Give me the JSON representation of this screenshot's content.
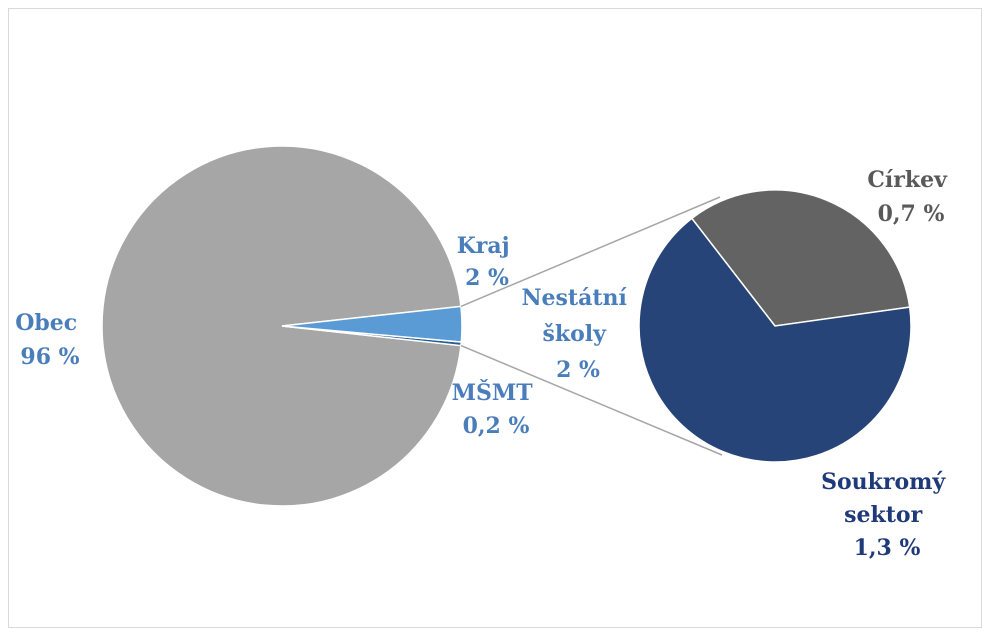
{
  "chart_data": {
    "type": "pie",
    "variant": "pie-of-pie",
    "title": "",
    "primary_pie": {
      "slices": [
        {
          "key": "obec",
          "name": "Obec",
          "value": 96,
          "value_label": "96 %",
          "color": "#a6a6a6",
          "label_color": "#4a7ebb"
        },
        {
          "key": "kraj",
          "name": "Kraj",
          "value": 2,
          "value_label": "2 %",
          "color": "#5b9bd5",
          "label_color": "#4a7ebb"
        },
        {
          "key": "msmt",
          "name": "MŠMT",
          "value": 0.2,
          "value_label": "0,2 %",
          "color": "#255e91",
          "label_color": "#4a7ebb"
        },
        {
          "key": "nestatni",
          "name": "Nestátní školy",
          "name_lines": [
            "Nestátní",
            "školy"
          ],
          "value": 2,
          "value_label": "2 %",
          "color": "#5b9bd5",
          "label_color": "#4a7ebb",
          "expanded": true
        }
      ]
    },
    "secondary_pie": {
      "parent": "Nestátní školy",
      "slices": [
        {
          "key": "cirkev",
          "name": "Církev",
          "value": 0.7,
          "value_label": "0,7 %",
          "color": "#636363",
          "label_color": "#595959"
        },
        {
          "key": "soukromy",
          "name": "Soukromý sektor",
          "name_lines": [
            "Soukromý",
            "sektor"
          ],
          "value": 1.3,
          "value_label": "1,3 %",
          "color": "#264478",
          "label_color": "#1f3a78"
        }
      ]
    },
    "legend": "none",
    "connector_color": "#a6a6a6"
  }
}
